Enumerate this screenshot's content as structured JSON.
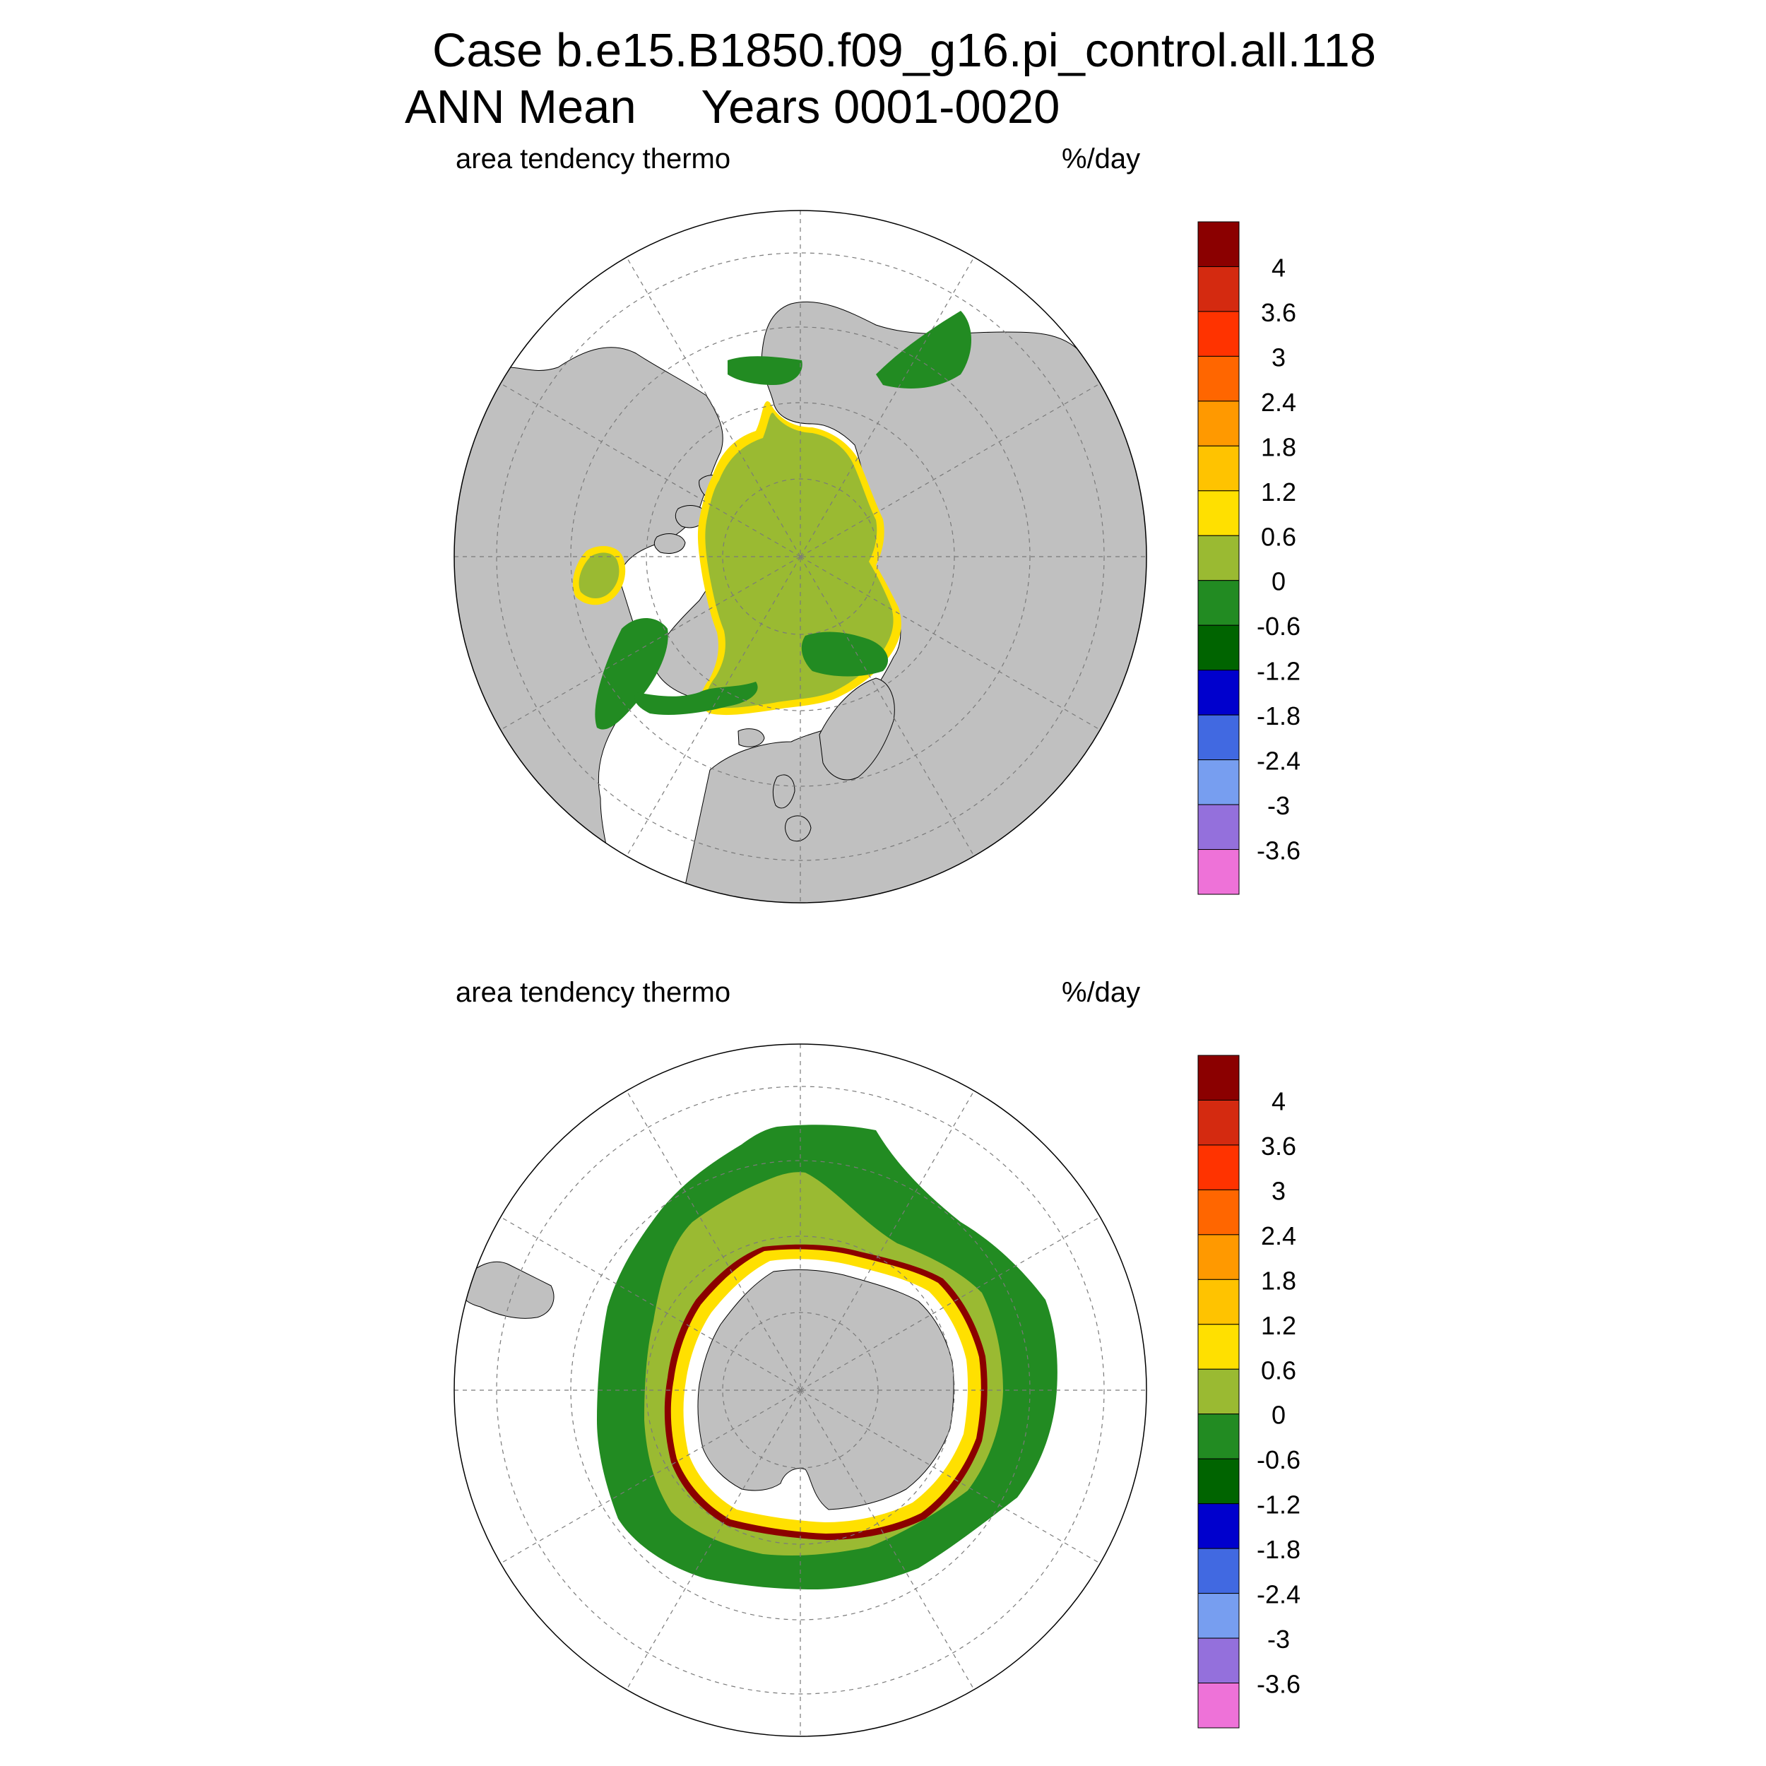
{
  "title": {
    "line1": "Case b.e15.B1850.f09_g16.pi_control.all.118",
    "line2": "ANN Mean     Years 0001-0020"
  },
  "panels": [
    {
      "id": "north",
      "hemisphere": "Northern Hemisphere (polar stereographic)",
      "variable_label": "area tendency thermo",
      "units_label": "%/day"
    },
    {
      "id": "south",
      "hemisphere": "Southern Hemisphere (polar stereographic)",
      "variable_label": "area tendency thermo",
      "units_label": "%/day"
    }
  ],
  "colorbar": {
    "colors": [
      "#ee72d8",
      "#9470dc",
      "#779ef0",
      "#4169e1",
      "#0000cd",
      "#006400",
      "#228b22",
      "#9aba32",
      "#ffe000",
      "#ffc300",
      "#ff9900",
      "#ff6600",
      "#ff3300",
      "#d42a10",
      "#8b0000"
    ],
    "tick_labels": [
      "-3.6",
      "-3",
      "-2.4",
      "-1.8",
      "-1.2",
      "-0.6",
      "0",
      "0.6",
      "1.2",
      "1.8",
      "2.4",
      "3",
      "3.6",
      "4"
    ]
  },
  "map_colors": {
    "land": "#c0c0c0",
    "ocean_no_ice": "#ffffff",
    "grid": "#7a7a7a"
  }
}
